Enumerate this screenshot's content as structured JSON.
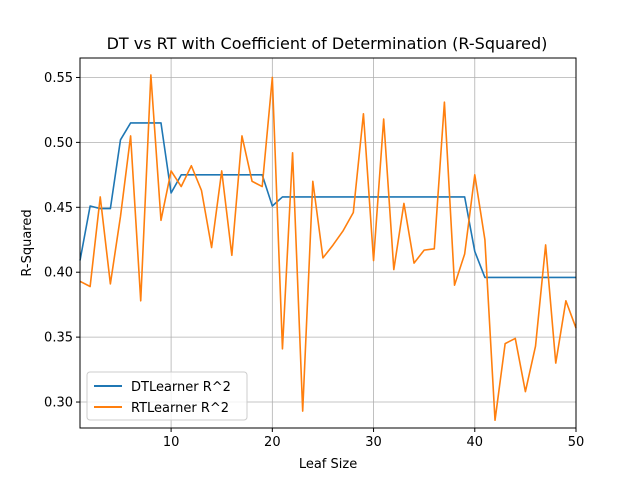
{
  "chart_data": {
    "type": "line",
    "title": "DT vs RT with Coefficient of Determination (R-Squared)",
    "xlabel": "Leaf Size",
    "ylabel": "R-Squared",
    "xlim": [
      1,
      50
    ],
    "ylim": [
      0.28,
      0.565
    ],
    "xticks": [
      10,
      20,
      30,
      40,
      50
    ],
    "yticks": [
      0.3,
      0.35,
      0.4,
      0.45,
      0.5,
      0.55
    ],
    "ytick_labels": [
      "0.30",
      "0.35",
      "0.40",
      "0.45",
      "0.50",
      "0.55"
    ],
    "grid": true,
    "legend_position": "lower-left",
    "x": [
      1,
      2,
      3,
      4,
      5,
      6,
      7,
      8,
      9,
      10,
      11,
      12,
      13,
      14,
      15,
      16,
      17,
      18,
      19,
      20,
      21,
      22,
      23,
      24,
      25,
      26,
      27,
      28,
      29,
      30,
      31,
      32,
      33,
      34,
      35,
      36,
      37,
      38,
      39,
      40,
      41,
      42,
      43,
      44,
      45,
      46,
      47,
      48,
      49,
      50
    ],
    "series": [
      {
        "name": "DTLearner R^2",
        "color": "#1f77b4",
        "values": [
          0.409,
          0.451,
          0.449,
          0.449,
          0.502,
          0.515,
          0.515,
          0.515,
          0.515,
          0.461,
          0.475,
          0.475,
          0.475,
          0.475,
          0.475,
          0.475,
          0.475,
          0.475,
          0.475,
          0.451,
          0.458,
          0.458,
          0.458,
          0.458,
          0.458,
          0.458,
          0.458,
          0.458,
          0.458,
          0.458,
          0.458,
          0.458,
          0.458,
          0.458,
          0.458,
          0.458,
          0.458,
          0.458,
          0.458,
          0.416,
          0.396,
          0.396,
          0.396,
          0.396,
          0.396,
          0.396,
          0.396,
          0.396,
          0.396,
          0.396
        ]
      },
      {
        "name": "RTLearner R^2",
        "color": "#ff7f0e",
        "values": [
          0.393,
          0.389,
          0.458,
          0.391,
          0.443,
          0.505,
          0.378,
          0.552,
          0.44,
          0.478,
          0.466,
          0.482,
          0.463,
          0.419,
          0.478,
          0.413,
          0.505,
          0.47,
          0.466,
          0.55,
          0.341,
          0.492,
          0.293,
          0.47,
          0.411,
          0.421,
          0.432,
          0.446,
          0.522,
          0.409,
          0.518,
          0.402,
          0.453,
          0.407,
          0.417,
          0.418,
          0.531,
          0.39,
          0.414,
          0.475,
          0.425,
          0.286,
          0.345,
          0.349,
          0.308,
          0.343,
          0.421,
          0.33,
          0.378,
          0.357
        ]
      }
    ]
  }
}
